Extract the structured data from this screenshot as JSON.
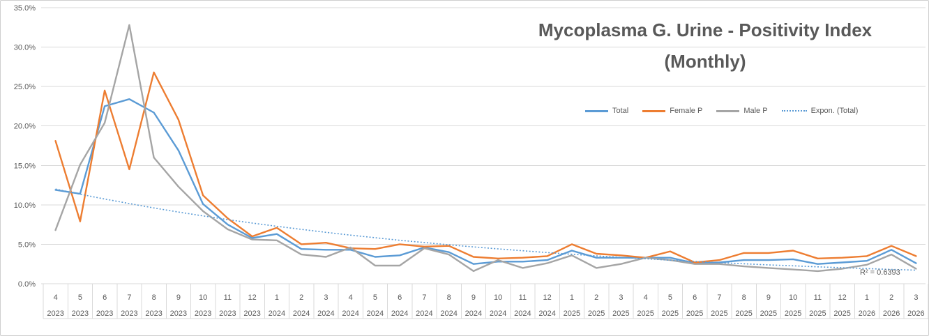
{
  "chart": {
    "title_line1": "Mycoplasma G. Urine - Positivity Index",
    "title_line2": "(Monthly)",
    "r2_label": "R² = 0.6393"
  },
  "chart_data": {
    "type": "line",
    "title": "Mycoplasma G. Urine - Positivity Index (Monthly)",
    "ylabel": "",
    "xlabel": "",
    "ylim": [
      0,
      35
    ],
    "grid": true,
    "legend_position": "inside-top-right",
    "y_ticks": [
      "0.0%",
      "5.0%",
      "10.0%",
      "15.0%",
      "20.0%",
      "25.0%",
      "30.0%",
      "35.0%"
    ],
    "x_months": [
      4,
      5,
      6,
      7,
      8,
      9,
      10,
      11,
      12,
      1,
      2,
      3,
      4,
      5,
      6,
      7,
      8,
      9,
      10,
      11,
      12,
      1,
      2,
      3,
      4,
      5,
      6,
      7,
      8,
      9,
      10,
      11,
      12,
      1,
      2,
      3
    ],
    "x_years": [
      2023,
      2023,
      2023,
      2023,
      2023,
      2023,
      2023,
      2023,
      2023,
      2024,
      2024,
      2024,
      2024,
      2024,
      2024,
      2024,
      2024,
      2024,
      2024,
      2024,
      2024,
      2025,
      2025,
      2025,
      2025,
      2025,
      2025,
      2025,
      2025,
      2025,
      2025,
      2025,
      2025,
      2026,
      2026,
      2026
    ],
    "value_unit": "percent",
    "series": [
      {
        "name": "Total",
        "color": "#5B9BD5",
        "dash": "solid",
        "values": [
          11.9,
          11.4,
          22.5,
          23.4,
          21.7,
          16.9,
          10.1,
          7.5,
          5.8,
          6.3,
          4.4,
          4.3,
          4.3,
          3.4,
          3.6,
          4.6,
          4.0,
          2.5,
          2.8,
          2.8,
          3.0,
          4.2,
          3.3,
          3.3,
          3.3,
          3.3,
          2.6,
          2.7,
          3.0,
          3.0,
          3.1,
          2.5,
          2.7,
          2.9,
          4.3,
          2.6
        ]
      },
      {
        "name": "Female P",
        "color": "#ED7D31",
        "dash": "solid",
        "values": [
          18.1,
          7.9,
          24.5,
          14.5,
          26.8,
          20.8,
          11.2,
          8.3,
          6.0,
          7.1,
          5.0,
          5.2,
          4.5,
          4.4,
          5.0,
          4.7,
          4.8,
          3.4,
          3.2,
          3.3,
          3.5,
          5.0,
          3.8,
          3.6,
          3.3,
          4.1,
          2.7,
          3.0,
          3.9,
          3.9,
          4.2,
          3.2,
          3.3,
          3.5,
          4.8,
          3.5
        ]
      },
      {
        "name": "Male P",
        "color": "#A5A5A5",
        "dash": "solid",
        "values": [
          6.8,
          15.1,
          20.4,
          32.8,
          16.0,
          12.3,
          9.2,
          6.9,
          5.6,
          5.5,
          3.7,
          3.4,
          4.6,
          2.3,
          2.3,
          4.5,
          3.7,
          1.6,
          3.0,
          2.0,
          2.6,
          3.6,
          2.0,
          2.5,
          3.3,
          3.0,
          2.5,
          2.5,
          2.2,
          2.0,
          1.8,
          1.6,
          1.9,
          2.4,
          3.7,
          1.9
        ]
      },
      {
        "name": "Expon. (Total)",
        "color": "#5B9BD5",
        "dash": "dotted",
        "annotation": "R² = 0.6393",
        "values": [
          12.0,
          11.35,
          10.74,
          10.16,
          9.61,
          9.09,
          8.6,
          8.13,
          7.69,
          7.28,
          6.89,
          6.51,
          6.16,
          5.83,
          5.51,
          5.22,
          4.93,
          4.67,
          4.42,
          4.18,
          3.95,
          3.74,
          3.53,
          3.34,
          3.16,
          2.99,
          2.83,
          2.68,
          2.53,
          2.39,
          2.27,
          2.14,
          2.03,
          1.92,
          1.81,
          1.72
        ]
      }
    ]
  }
}
